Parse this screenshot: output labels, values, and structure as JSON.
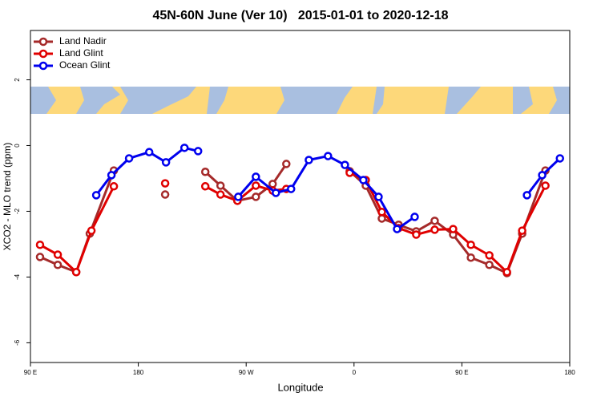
{
  "chart_data": {
    "type": "line",
    "title": "45N-60N June (Ver 10)   2015-01-01 to 2020-12-18",
    "xlabel": "Longitude",
    "ylabel": "XCO2 - MLO trend (ppm)",
    "xlim": [
      90,
      540
    ],
    "ylim": [
      -6.6,
      3.5
    ],
    "xticks": [
      {
        "value": 90,
        "label": "90 E"
      },
      {
        "value": 180,
        "label": "180"
      },
      {
        "value": 270,
        "label": "90 W"
      },
      {
        "value": 360,
        "label": "0"
      },
      {
        "value": 450,
        "label": "90 E"
      },
      {
        "value": 540,
        "label": "180"
      }
    ],
    "yticks": [
      -6,
      -4,
      -2,
      0,
      2
    ],
    "grid": false,
    "legend": "top-left",
    "series": [
      {
        "name": "Land Nadir",
        "color": "#a52a2a",
        "x": [
          98,
          112.8,
          128.2,
          139.5,
          159.6,
          null,
          202.4,
          null,
          235.9,
          248.6,
          262.7,
          278.1,
          292.1,
          303.5,
          null,
          356.4,
          369.8,
          383.2,
          397.2,
          411.9,
          427.3,
          442.7,
          457.5,
          472.9,
          487.6,
          500.3,
          519.7
        ],
        "values": [
          -3.39,
          -3.63,
          -3.85,
          -2.68,
          -0.76,
          null,
          -1.49,
          null,
          -0.8,
          -1.22,
          -1.68,
          -1.56,
          -1.17,
          -0.56,
          null,
          -0.78,
          -1.22,
          -2.22,
          -2.41,
          -2.61,
          -2.29,
          -2.71,
          -3.41,
          -3.63,
          -3.88,
          -2.68,
          -0.76
        ]
      },
      {
        "name": "Land Glint",
        "color": "#e00000",
        "x": [
          98,
          112.8,
          128.2,
          140.9,
          159.6,
          null,
          202.4,
          null,
          235.9,
          248.6,
          262.7,
          278.1,
          292.1,
          303.5,
          null,
          356.4,
          369.8,
          383.2,
          397.2,
          411.9,
          427.3,
          442.7,
          457.5,
          472.9,
          487.6,
          500.3,
          519.7
        ],
        "values": [
          -3.02,
          -3.32,
          -3.85,
          -2.59,
          -1.24,
          null,
          -1.15,
          null,
          -1.24,
          -1.49,
          -1.68,
          -1.22,
          -1.37,
          -1.32,
          null,
          -0.83,
          -1.05,
          -2.02,
          -2.51,
          -2.71,
          -2.56,
          -2.54,
          -3.02,
          -3.34,
          -3.85,
          -2.59,
          -1.22
        ]
      },
      {
        "name": "Ocean Glint",
        "color": "#0000ee",
        "x": [
          144.9,
          157.6,
          172.3,
          189.1,
          203.1,
          218.5,
          229.9,
          null,
          263.4,
          278.1,
          294.8,
          307.5,
          322.3,
          338.3,
          352.4,
          367.8,
          380.5,
          395.9,
          410.6,
          null,
          504.3,
          517,
          531.8
        ],
        "values": [
          -1.51,
          -0.9,
          -0.39,
          -0.2,
          -0.51,
          -0.07,
          -0.17,
          null,
          -1.56,
          -0.95,
          -1.44,
          -1.32,
          -0.44,
          -0.32,
          -0.59,
          -1.05,
          -1.56,
          -2.54,
          -2.17,
          null,
          -1.51,
          -0.9,
          -0.39
        ]
      }
    ]
  }
}
